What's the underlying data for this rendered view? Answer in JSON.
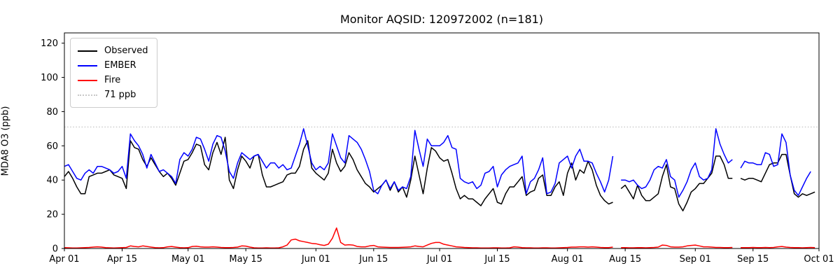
{
  "title": "Monitor AQSID: 120972002 (n=181)",
  "chart_data": {
    "type": "line",
    "title": "Monitor AQSID: 120972002 (n=181)",
    "xlabel": "",
    "ylabel": "MDA8 O3 (ppb)",
    "ylim": [
      0,
      126
    ],
    "y_ticks": [
      0,
      20,
      40,
      60,
      80,
      100,
      120
    ],
    "x_tick_labels": [
      "Apr 01",
      "Apr 15",
      "May 01",
      "May 15",
      "Jun 01",
      "Jun 15",
      "Jul 01",
      "Jul 15",
      "Aug 01",
      "Aug 15",
      "Sep 01",
      "Sep 15",
      "Oct 01"
    ],
    "x_tick_days": [
      0,
      14,
      30,
      44,
      61,
      75,
      91,
      105,
      122,
      136,
      153,
      167,
      183
    ],
    "x_range_days": [
      0,
      183
    ],
    "x_unit": "days since Apr 01",
    "grid": false,
    "legend_position": "upper left",
    "background": "#ffffff",
    "missing_days": [
      "Aug 13",
      "Sep 11"
    ],
    "threshold": {
      "label": "71 ppb",
      "value": 71,
      "color": "#c8c8c8",
      "style": "dotted"
    },
    "series": [
      {
        "name": "Observed",
        "color": "#000000",
        "values": [
          42,
          45,
          41,
          36,
          32,
          32,
          42,
          43,
          44,
          44,
          45,
          46,
          43,
          42,
          41,
          35,
          63,
          59,
          58,
          52,
          48,
          53,
          49,
          45,
          42,
          44,
          41,
          37,
          44,
          51,
          52,
          56,
          61,
          60,
          49,
          46,
          56,
          62,
          55,
          65,
          40,
          35,
          46,
          54,
          51,
          47,
          54,
          55,
          43,
          36,
          36,
          37,
          38,
          39,
          43,
          44,
          44,
          48,
          58,
          63,
          47,
          44,
          42,
          40,
          44,
          58,
          50,
          45,
          48,
          56,
          52,
          46,
          42,
          38,
          36,
          33,
          35,
          37,
          40,
          34,
          39,
          33,
          36,
          30,
          40,
          54,
          43,
          32,
          47,
          59,
          57,
          53,
          51,
          52,
          44,
          35,
          29,
          31,
          29,
          29,
          27,
          25,
          29,
          32,
          35,
          27,
          26,
          32,
          36,
          36,
          39,
          42,
          31,
          33,
          34,
          41,
          43,
          31,
          31,
          36,
          39,
          31,
          44,
          50,
          40,
          46,
          44,
          51,
          46,
          37,
          31,
          28,
          26,
          27,
          null,
          35,
          37,
          33,
          29,
          37,
          31,
          28,
          28,
          30,
          32,
          42,
          49,
          36,
          35,
          26,
          22,
          27,
          33,
          35,
          38,
          38,
          41,
          44,
          54,
          54,
          49,
          41,
          41,
          null,
          41,
          40,
          41,
          41,
          40,
          39,
          44,
          49,
          50,
          50,
          55,
          55,
          43,
          32,
          30,
          32,
          31,
          32,
          33
        ]
      },
      {
        "name": "EMBER",
        "color": "#0000ff",
        "values": [
          48,
          49,
          45,
          41,
          40,
          44,
          46,
          44,
          48,
          48,
          47,
          46,
          44,
          45,
          48,
          41,
          67,
          63,
          60,
          55,
          47,
          55,
          50,
          45,
          46,
          44,
          42,
          38,
          52,
          56,
          54,
          58,
          65,
          64,
          58,
          51,
          61,
          66,
          65,
          57,
          45,
          41,
          50,
          56,
          54,
          52,
          54,
          55,
          51,
          47,
          50,
          50,
          47,
          49,
          46,
          47,
          54,
          61,
          70,
          60,
          50,
          46,
          48,
          46,
          50,
          67,
          60,
          53,
          50,
          66,
          64,
          62,
          58,
          52,
          45,
          34,
          32,
          37,
          40,
          35,
          39,
          34,
          36,
          35,
          42,
          69,
          58,
          48,
          64,
          60,
          60,
          60,
          62,
          66,
          59,
          58,
          41,
          39,
          38,
          39,
          35,
          37,
          44,
          45,
          48,
          36,
          43,
          46,
          48,
          49,
          50,
          54,
          32,
          39,
          41,
          46,
          53,
          32,
          33,
          38,
          50,
          52,
          54,
          47,
          54,
          58,
          51,
          51,
          50,
          44,
          39,
          33,
          40,
          54,
          null,
          40,
          40,
          39,
          40,
          37,
          35,
          36,
          40,
          46,
          48,
          47,
          52,
          42,
          40,
          30,
          34,
          39,
          46,
          50,
          42,
          40,
          41,
          46,
          70,
          61,
          55,
          50,
          52,
          null,
          47,
          51,
          50,
          50,
          49,
          49,
          56,
          55,
          48,
          49,
          67,
          62,
          43,
          34,
          31,
          36,
          41,
          45,
          null
        ]
      },
      {
        "name": "Fire",
        "color": "#ff0000",
        "values": [
          0.5,
          0.4,
          0.3,
          0.3,
          0.4,
          0.5,
          0.6,
          0.8,
          1.0,
          0.8,
          0.5,
          0.4,
          0.3,
          0.4,
          0.5,
          0.6,
          1.5,
          1.2,
          1.0,
          1.5,
          1.2,
          0.8,
          0.5,
          0.4,
          0.5,
          1.0,
          1.2,
          0.8,
          0.5,
          0.4,
          0.5,
          1.2,
          1.3,
          1.0,
          0.8,
          0.8,
          1.0,
          0.8,
          0.6,
          0.5,
          0.5,
          0.6,
          0.8,
          1.5,
          1.4,
          0.8,
          0.4,
          0.3,
          0.3,
          0.4,
          0.3,
          0.3,
          0.4,
          1.0,
          2.0,
          5.0,
          5.5,
          4.5,
          4.0,
          3.5,
          3.0,
          2.8,
          2.2,
          1.8,
          2.5,
          6.0,
          12.0,
          3.5,
          2.0,
          2.2,
          2.0,
          1.2,
          1.0,
          1.0,
          1.5,
          1.8,
          1.0,
          0.8,
          0.7,
          0.6,
          0.6,
          0.6,
          0.7,
          0.8,
          1.0,
          1.5,
          1.2,
          1.0,
          2.0,
          3.0,
          3.5,
          3.5,
          2.5,
          2.0,
          1.5,
          1.0,
          0.8,
          0.6,
          0.5,
          0.4,
          0.4,
          0.3,
          0.3,
          0.3,
          0.4,
          0.4,
          0.3,
          0.3,
          0.4,
          1.0,
          0.8,
          0.5,
          0.4,
          0.4,
          0.3,
          0.3,
          0.4,
          0.4,
          0.3,
          0.3,
          0.4,
          0.5,
          0.6,
          0.8,
          0.8,
          1.0,
          1.0,
          0.8,
          1.0,
          0.8,
          0.6,
          0.5,
          0.5,
          0.8,
          null,
          0.5,
          0.5,
          0.4,
          0.4,
          0.5,
          0.5,
          0.4,
          0.5,
          0.6,
          0.8,
          2.0,
          1.8,
          1.0,
          0.8,
          0.8,
          1.0,
          1.5,
          1.8,
          2.0,
          1.5,
          1.0,
          1.0,
          0.8,
          0.6,
          0.6,
          0.5,
          0.5,
          0.6,
          null,
          0.5,
          0.5,
          0.5,
          0.6,
          0.5,
          0.5,
          0.6,
          0.5,
          0.6,
          1.0,
          1.2,
          0.8,
          0.6,
          0.5,
          0.5,
          0.4,
          0.5,
          0.6,
          0.5
        ]
      }
    ]
  },
  "legend": {
    "items": [
      {
        "label": "Observed",
        "color": "#000000",
        "style": "solid"
      },
      {
        "label": "EMBER",
        "color": "#0000ff",
        "style": "solid"
      },
      {
        "label": "Fire",
        "color": "#ff0000",
        "style": "solid"
      },
      {
        "label": "71 ppb",
        "color": "#c8c8c8",
        "style": "dotted"
      }
    ]
  }
}
